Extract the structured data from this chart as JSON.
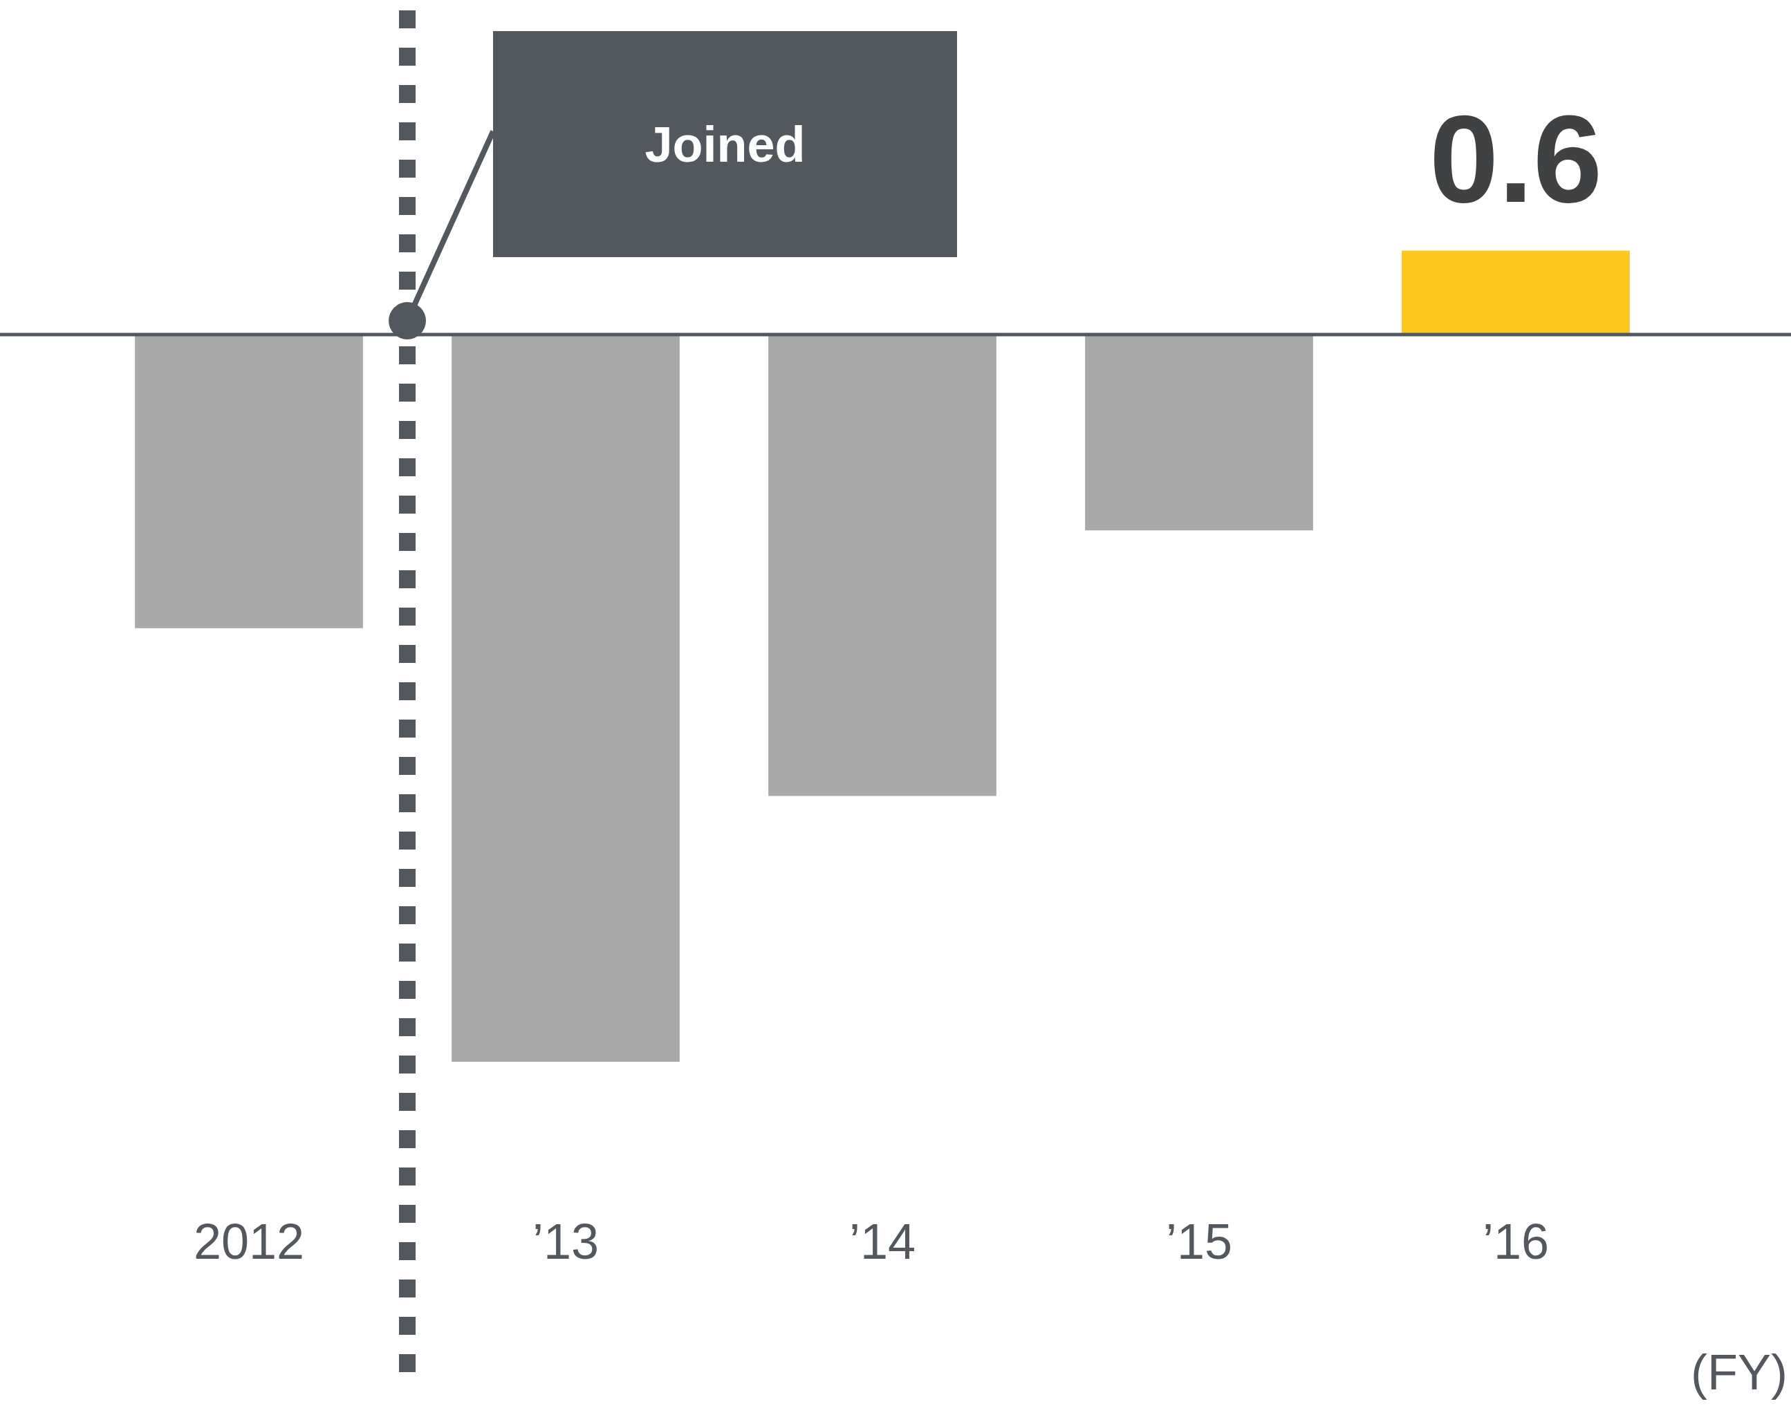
{
  "chart_data": {
    "type": "bar",
    "xlabel": "(FY)",
    "categories": [
      "2012",
      "’13",
      "’14",
      "’15",
      "’16"
    ],
    "values": [
      -2.1,
      -5.2,
      -3.3,
      -1.4,
      0.6
    ],
    "colors": [
      "#a8a9a8",
      "#a8a9a8",
      "#a8a9a8",
      "#a8a9a8",
      "#fdc71f"
    ],
    "tick_labels": "x",
    "value_labels": [
      null,
      null,
      null,
      null,
      "0.6"
    ],
    "annotations": [
      "Joined"
    ],
    "grid": false,
    "legend": false
  }
}
